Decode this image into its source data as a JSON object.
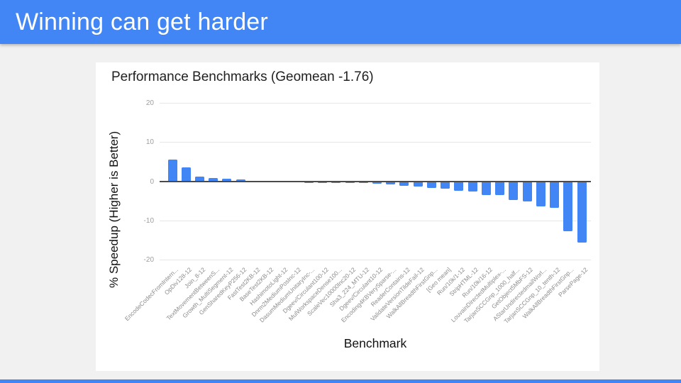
{
  "slide": {
    "header_title": "Winning can get harder"
  },
  "chart": {
    "title": "Performance Benchmarks (Geomean -1.76)",
    "y_axis_title": "% Speedup (Higher is Better)",
    "x_axis_title": "Benchmark"
  },
  "colors": {
    "header_bg": "#4285f4",
    "footer_bg": "#4285f4",
    "bar": "#4285f4",
    "slide_bg": "#f1f1f1",
    "card_bg": "#ffffff",
    "gridline": "#e6e6e6",
    "zero_line": "#4a4a4a",
    "tick_text": "#9e9e9e"
  },
  "chart_data": {
    "type": "bar",
    "title": "Performance Benchmarks (Geomean -1.76)",
    "xlabel": "Benchmark",
    "ylabel": "% Speedup (Higher is Better)",
    "ylim": [
      -20,
      20
    ],
    "yticks": [
      20,
      10,
      0,
      -10,
      -20
    ],
    "grid": true,
    "legend": "none",
    "geomean": -1.76,
    "categories": [
      "EncodeCodecFromIntern...",
      "OpDiv128-12",
      "Join_8-12",
      "TextMovementBetweenS...",
      "Growth_MultiSegment-12",
      "GenSharedKeyP256-12",
      "FastTest2KB-12",
      "BaseTest2KB-12",
      "HashimotoLight-12",
      "Dnrm2MediumPosInc-12",
      "DasumMediumUnitaryInc-...",
      "Dgeev/Circulant100-12",
      "MulWorkspaceDense100...",
      "ScaleVec10000Inc20-12",
      "Sha3_224_MTU-12",
      "Dgeev/Circulant10-12",
      "Encoding4KBVerySparse-...",
      "ReaderContains-12",
      "ValidateVersionTildeFail-12",
      "WalkAllBreadthFirstGnp...",
      "[Geo mean]",
      "Run/10k/1-12",
      "StripHTML-12",
      "Run/10k/16-12",
      "LouvainDirectedMultiplex-...",
      "TarjanSCCGnp_1000_half...",
      "GetObject5MbFS-12",
      "AStarUndirectedmailWorl...",
      "TarjanSCCGnp_10_tenth-12",
      "WalkAllBreadthFirstGnp...",
      "ParsePage-12"
    ],
    "values": [
      5.5,
      3.6,
      1.1,
      0.9,
      0.6,
      0.4,
      0.1,
      0.05,
      0.05,
      0,
      -0.05,
      -0.05,
      -0.1,
      -0.15,
      -0.35,
      -0.5,
      -0.7,
      -1.0,
      -1.2,
      -1.6,
      -1.8,
      -2.2,
      -2.5,
      -3.3,
      -3.4,
      -4.7,
      -5.0,
      -6.3,
      -6.6,
      -12.5,
      -15.4
    ]
  }
}
